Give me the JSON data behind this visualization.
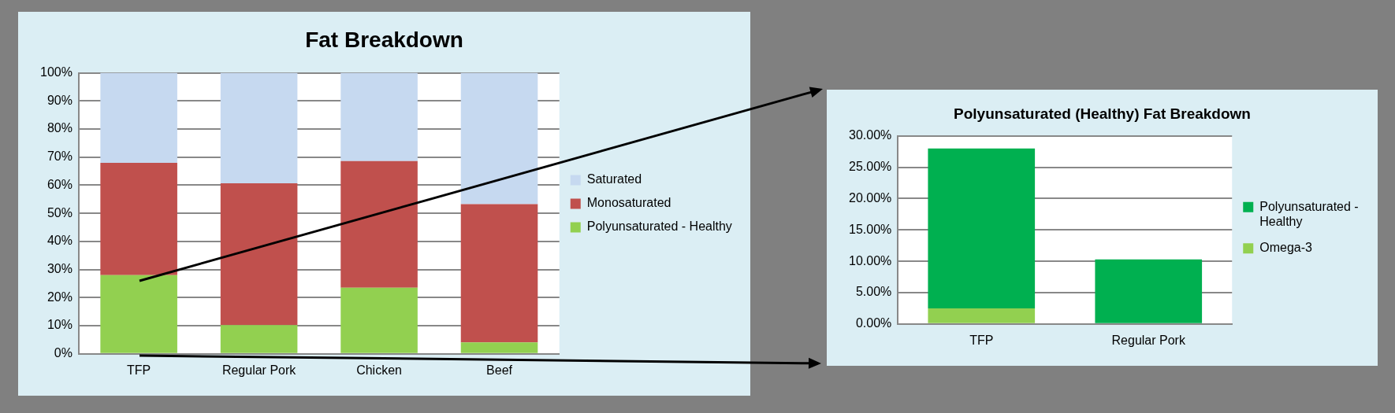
{
  "chart_data": [
    {
      "type": "bar",
      "title": "Fat Breakdown",
      "categories": [
        "TFP",
        "Regular Pork",
        "Chicken",
        "Beef"
      ],
      "stacked": true,
      "legend": "right",
      "grid": "y",
      "series": [
        {
          "name": "Polyunsaturated - Healthy",
          "color": "#92d050",
          "values": [
            28,
            10.2,
            23.5,
            4.1
          ]
        },
        {
          "name": "Monosaturated",
          "color": "#c0504d",
          "values": [
            40,
            50.5,
            45.1,
            49.2
          ]
        },
        {
          "name": "Saturated",
          "color": "#c6d9f0",
          "values": [
            32,
            39.3,
            31.4,
            46.7
          ]
        }
      ],
      "ylim": [
        0,
        100
      ],
      "yticks": [
        {
          "value": 0,
          "label": "0%"
        },
        {
          "value": 10,
          "label": "10%"
        },
        {
          "value": 20,
          "label": "20%"
        },
        {
          "value": 30,
          "label": "30%"
        },
        {
          "value": 40,
          "label": "40%"
        },
        {
          "value": 50,
          "label": "50%"
        },
        {
          "value": 60,
          "label": "60%"
        },
        {
          "value": 70,
          "label": "70%"
        },
        {
          "value": 80,
          "label": "80%"
        },
        {
          "value": 90,
          "label": "90%"
        },
        {
          "value": 100,
          "label": "100%"
        }
      ]
    },
    {
      "type": "bar",
      "title": "Polyunsaturated (Healthy) Fat Breakdown",
      "categories": [
        "TFP",
        "Regular Pork"
      ],
      "stacked": true,
      "legend": "right",
      "grid": "y",
      "series": [
        {
          "name": "Omega-3",
          "color": "#92d050",
          "values": [
            2.5,
            0
          ]
        },
        {
          "name": "Polyunsaturated - Healthy",
          "color": "#00b050",
          "values": [
            25.5,
            10.3
          ]
        }
      ],
      "ylim": [
        0,
        30
      ],
      "yticks": [
        {
          "value": 0,
          "label": "0.00%"
        },
        {
          "value": 5,
          "label": "5.00%"
        },
        {
          "value": 10,
          "label": "10.00%"
        },
        {
          "value": 15,
          "label": "15.00%"
        },
        {
          "value": 20,
          "label": "20.00%"
        },
        {
          "value": 25,
          "label": "25.00%"
        },
        {
          "value": 30,
          "label": "30.00%"
        }
      ]
    }
  ]
}
